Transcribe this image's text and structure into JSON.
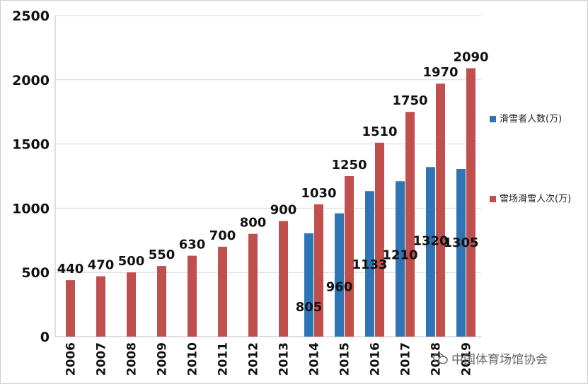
{
  "chart_data": {
    "type": "bar",
    "categories": [
      "2006",
      "2007",
      "2008",
      "2009",
      "2010",
      "2011",
      "2012",
      "2013",
      "2014",
      "2015",
      "2016",
      "2017",
      "2018",
      "2019"
    ],
    "series": [
      {
        "name": "滑雪者人数(万)",
        "color": "#2e75b6",
        "values": [
          null,
          null,
          null,
          null,
          null,
          null,
          null,
          null,
          805,
          960,
          1133,
          1210,
          1320,
          1305
        ]
      },
      {
        "name": "雪场滑雪人次(万)",
        "color": "#c0504d",
        "values": [
          440,
          470,
          500,
          550,
          630,
          700,
          800,
          900,
          1030,
          1250,
          1510,
          1750,
          1970,
          2090
        ]
      }
    ],
    "y_ticks": [
      "0",
      "500",
      "1000",
      "1500",
      "2000",
      "2500"
    ],
    "ylim": [
      0,
      2500
    ],
    "grid": true,
    "legend_position": "right",
    "title": "",
    "xlabel": "",
    "ylabel": ""
  },
  "watermark": {
    "text": "中国体育场馆协会",
    "icon": "wechat-icon"
  }
}
